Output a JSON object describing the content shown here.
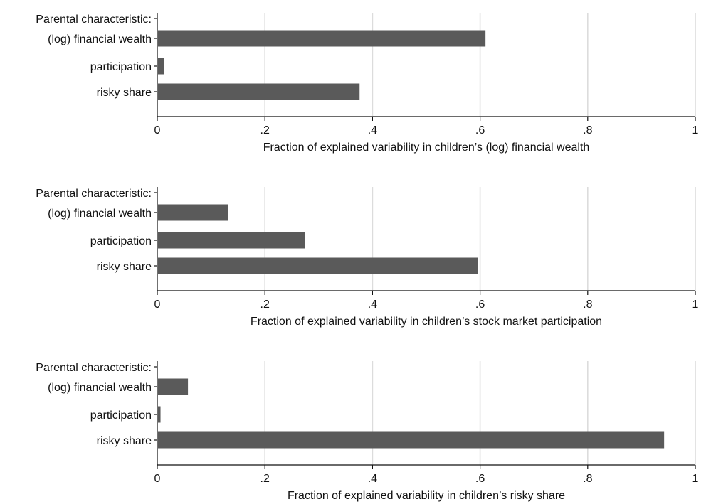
{
  "colors": {
    "bar": "#5a5a5a",
    "grid": "#dcdcdc",
    "axis": "#111111",
    "text": "#111111"
  },
  "chart_data": [
    {
      "type": "bar",
      "orientation": "horizontal",
      "group_label": "Parental characteristic:",
      "categories": [
        "(log) financial wealth",
        "participation",
        "risky share"
      ],
      "values": [
        0.61,
        0.012,
        0.376
      ],
      "xlabel": "Fraction of explained variability in children’s (log) financial wealth",
      "xlim": [
        0,
        1
      ],
      "xticks": [
        0,
        0.2,
        0.4,
        0.6,
        0.8,
        1
      ],
      "xtick_labels": [
        "0",
        ".2",
        ".4",
        ".6",
        ".8",
        "1"
      ],
      "grid": true
    },
    {
      "type": "bar",
      "orientation": "horizontal",
      "group_label": "Parental characteristic:",
      "categories": [
        "(log) financial wealth",
        "participation",
        "risky share"
      ],
      "values": [
        0.132,
        0.275,
        0.596
      ],
      "xlabel": "Fraction of explained variability in children’s stock market participation",
      "xlim": [
        0,
        1
      ],
      "xticks": [
        0,
        0.2,
        0.4,
        0.6,
        0.8,
        1
      ],
      "xtick_labels": [
        "0",
        ".2",
        ".4",
        ".6",
        ".8",
        "1"
      ],
      "grid": true
    },
    {
      "type": "bar",
      "orientation": "horizontal",
      "group_label": "Parental characteristic:",
      "categories": [
        "(log) financial wealth",
        "participation",
        "risky share"
      ],
      "values": [
        0.057,
        0.006,
        0.942
      ],
      "xlabel": "Fraction of explained variability in children’s risky share",
      "xlim": [
        0,
        1
      ],
      "xticks": [
        0,
        0.2,
        0.4,
        0.6,
        0.8,
        1
      ],
      "xtick_labels": [
        "0",
        ".2",
        ".4",
        ".6",
        ".8",
        "1"
      ],
      "grid": true
    }
  ]
}
